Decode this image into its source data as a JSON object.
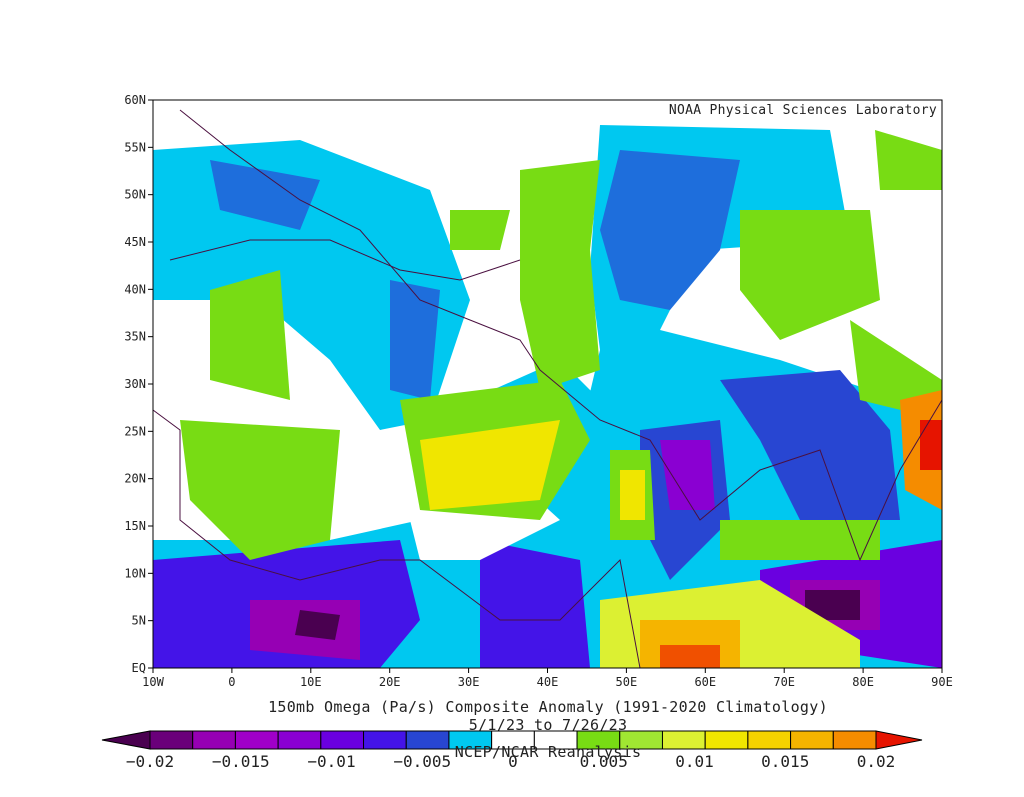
{
  "header": {
    "credit": "NOAA Physical Sciences Laboratory"
  },
  "map": {
    "lat_labels": [
      "60N",
      "55N",
      "50N",
      "45N",
      "40N",
      "35N",
      "30N",
      "25N",
      "20N",
      "15N",
      "10N",
      "5N",
      "EQ"
    ],
    "lon_labels": [
      "10W",
      "0",
      "10E",
      "20E",
      "30E",
      "40E",
      "50E",
      "60E",
      "70E",
      "80E",
      "90E"
    ]
  },
  "title": "150mb Omega (Pa/s) Composite Anomaly (1991-2020 Climatology)",
  "dates": "5/1/23  to 7/26/23",
  "source": "NCEP/NCAR Reanalysis",
  "colorbar": {
    "labels": [
      "−0.02",
      "−0.015",
      "−0.01",
      "−0.005",
      "0",
      "0.005",
      "0.01",
      "0.015",
      "0.02"
    ],
    "colors": [
      "#4a0050",
      "#6a007a",
      "#9600b4",
      "#a000c8",
      "#8a00d2",
      "#6a00e0",
      "#4414e8",
      "#2846d2",
      "#00c8f0",
      "#ffffff",
      "#ffffff",
      "#78dc14",
      "#a0e632",
      "#dcf032",
      "#f0e600",
      "#f5d200",
      "#f5b400",
      "#f58c00",
      "#e61400"
    ]
  }
}
